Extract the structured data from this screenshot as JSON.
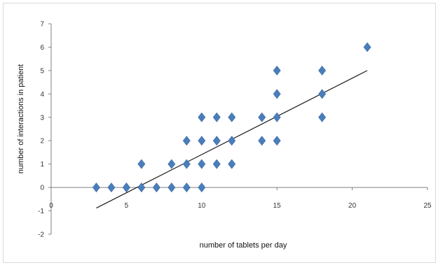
{
  "chart_data": {
    "type": "scatter",
    "title": "",
    "xlabel": "number of tablets per day",
    "ylabel": "number of interactions in patient",
    "xlim": [
      0,
      25
    ],
    "ylim": [
      -2,
      7
    ],
    "xticks": [
      0,
      5,
      10,
      15,
      20,
      25
    ],
    "yticks": [
      -2,
      -1,
      0,
      1,
      2,
      3,
      4,
      5,
      6,
      7
    ],
    "grid": false,
    "legend": "none",
    "marker": "diamond",
    "colors": {
      "marker": "#4a7ebb",
      "marker_edge": "#3b6aa3",
      "trendline": "#1a1a1a",
      "axis": "#808080"
    },
    "series": [
      {
        "points": [
          [
            3,
            0
          ],
          [
            4,
            0
          ],
          [
            5,
            0
          ],
          [
            5,
            0
          ],
          [
            6,
            0
          ],
          [
            6,
            1
          ],
          [
            7,
            0
          ],
          [
            8,
            0
          ],
          [
            8,
            1
          ],
          [
            9,
            0
          ],
          [
            9,
            1
          ],
          [
            9,
            2
          ],
          [
            10,
            0
          ],
          [
            10,
            1
          ],
          [
            10,
            2
          ],
          [
            10,
            3
          ],
          [
            11,
            1
          ],
          [
            11,
            2
          ],
          [
            11,
            3
          ],
          [
            12,
            1
          ],
          [
            12,
            2
          ],
          [
            12,
            3
          ],
          [
            14,
            2
          ],
          [
            14,
            3
          ],
          [
            15,
            2
          ],
          [
            15,
            3
          ],
          [
            15,
            4
          ],
          [
            15,
            5
          ],
          [
            18,
            3
          ],
          [
            18,
            4
          ],
          [
            18,
            5
          ],
          [
            21,
            6
          ]
        ]
      }
    ],
    "trendline": {
      "type": "linear",
      "x": [
        3,
        21
      ],
      "y": [
        -0.88,
        5.0
      ]
    }
  }
}
